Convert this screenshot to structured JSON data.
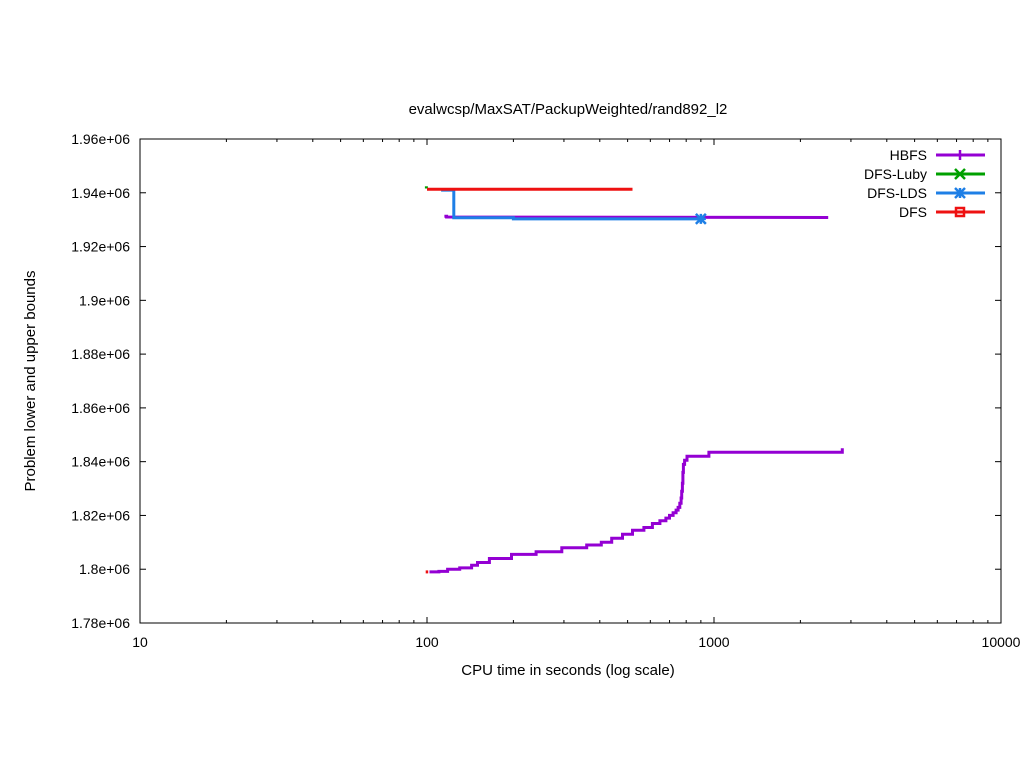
{
  "chart_data": {
    "type": "line",
    "title": "evalwcsp/MaxSAT/PackupWeighted/rand892_l2",
    "xlabel": "CPU time in seconds (log scale)",
    "ylabel": "Problem lower and upper bounds",
    "xscale": "log",
    "xlim": [
      10,
      10000
    ],
    "ylim": [
      1780000,
      1960000
    ],
    "grid": false,
    "legend_position": "top-right",
    "x_ticks": [
      {
        "value": 10,
        "label": "10"
      },
      {
        "value": 100,
        "label": "100"
      },
      {
        "value": 1000,
        "label": "1000"
      },
      {
        "value": 10000,
        "label": "10000"
      }
    ],
    "y_ticks": [
      {
        "value": 1780000,
        "label": "1.78e+06"
      },
      {
        "value": 1800000,
        "label": "1.8e+06"
      },
      {
        "value": 1820000,
        "label": "1.82e+06"
      },
      {
        "value": 1840000,
        "label": "1.84e+06"
      },
      {
        "value": 1860000,
        "label": "1.86e+06"
      },
      {
        "value": 1880000,
        "label": "1.88e+06"
      },
      {
        "value": 1900000,
        "label": "1.9e+06"
      },
      {
        "value": 1920000,
        "label": "1.92e+06"
      },
      {
        "value": 1940000,
        "label": "1.94e+06"
      },
      {
        "value": 1960000,
        "label": "1.96e+06"
      }
    ],
    "series": [
      {
        "name": "HBFS",
        "color": "#9400d3",
        "marker": "plus",
        "lines": [
          {
            "role": "upper",
            "points": [
              [
                115,
                1931300
              ],
              [
                117,
                1931300
              ],
              [
                117,
                1931000
              ],
              [
                2500,
                1930800
              ]
            ]
          },
          {
            "role": "lower",
            "points": [
              [
                102,
                1799000
              ],
              [
                110,
                1799000
              ],
              [
                110,
                1799200
              ],
              [
                118,
                1799200
              ],
              [
                118,
                1800000
              ],
              [
                130,
                1800000
              ],
              [
                130,
                1800500
              ],
              [
                143,
                1800500
              ],
              [
                143,
                1801500
              ],
              [
                150,
                1801500
              ],
              [
                150,
                1802500
              ],
              [
                165,
                1802500
              ],
              [
                165,
                1804000
              ],
              [
                197,
                1804000
              ],
              [
                197,
                1805500
              ],
              [
                240,
                1805500
              ],
              [
                240,
                1806500
              ],
              [
                295,
                1806500
              ],
              [
                295,
                1808000
              ],
              [
                360,
                1808000
              ],
              [
                360,
                1809000
              ],
              [
                405,
                1809000
              ],
              [
                405,
                1810000
              ],
              [
                440,
                1810000
              ],
              [
                440,
                1811500
              ],
              [
                480,
                1811500
              ],
              [
                480,
                1813000
              ],
              [
                520,
                1813000
              ],
              [
                520,
                1814500
              ],
              [
                570,
                1814500
              ],
              [
                570,
                1815500
              ],
              [
                610,
                1815500
              ],
              [
                610,
                1817000
              ],
              [
                648,
                1817000
              ],
              [
                648,
                1818000
              ],
              [
                680,
                1818000
              ],
              [
                680,
                1819000
              ],
              [
                700,
                1819000
              ],
              [
                700,
                1820000
              ],
              [
                720,
                1820000
              ],
              [
                720,
                1821000
              ],
              [
                738,
                1821000
              ],
              [
                738,
                1822000
              ],
              [
                750,
                1822000
              ],
              [
                750,
                1823000
              ],
              [
                760,
                1823000
              ],
              [
                760,
                1824500
              ],
              [
                768,
                1824500
              ],
              [
                768,
                1826500
              ],
              [
                772,
                1826500
              ],
              [
                772,
                1829000
              ],
              [
                776,
                1829000
              ],
              [
                776,
                1832000
              ],
              [
                779,
                1832000
              ],
              [
                779,
                1836000
              ],
              [
                782,
                1836000
              ],
              [
                782,
                1839000
              ],
              [
                790,
                1839000
              ],
              [
                790,
                1840500
              ],
              [
                805,
                1840500
              ],
              [
                805,
                1842000
              ],
              [
                960,
                1842000
              ],
              [
                960,
                1843500
              ],
              [
                2800,
                1843500
              ],
              [
                2800,
                1845000
              ]
            ]
          }
        ]
      },
      {
        "name": "DFS-Luby",
        "color": "#00a000",
        "marker": "x",
        "lines": [
          {
            "role": "upper",
            "points": [
              [
                99.5,
                1941600
              ],
              [
                99.5,
                1942400
              ]
            ]
          }
        ]
      },
      {
        "name": "DFS-LDS",
        "color": "#1e7fe6",
        "marker": "star",
        "lines": [
          {
            "role": "upper",
            "points": [
              [
                112,
                1941000
              ],
              [
                124,
                1941000
              ],
              [
                124,
                1930700
              ],
              [
                200,
                1930700
              ],
              [
                200,
                1930300
              ],
              [
                900,
                1930300
              ]
            ]
          }
        ],
        "markers": [
          [
            900,
            1930300
          ]
        ]
      },
      {
        "name": "DFS",
        "color": "#ee1111",
        "marker": "square",
        "lines": [
          {
            "role": "upper",
            "points": [
              [
                100,
                1941300
              ],
              [
                520,
                1941300
              ]
            ]
          },
          {
            "role": "lower",
            "points": [
              [
                99,
                1799000
              ],
              [
                101,
                1799000
              ]
            ]
          }
        ]
      }
    ]
  }
}
